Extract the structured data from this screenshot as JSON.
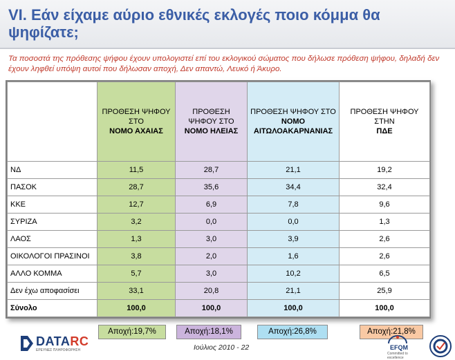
{
  "title": "VI. Εάν είχαμε αύριο εθνικές εκλογές ποιο κόμμα θα ψηφίζατε;",
  "note": "Τα ποσοστά της πρόθεσης ψήφου έχουν υπολογιστεί επί του εκλογικού σώματος που δήλωσε πρόθεση ψήφου, δηλαδή δεν έχουν ληφθεί υπόψη αυτοί που δήλωσαν αποχή, Δεν απαντώ, Λευκό ή Άκυρο.",
  "table": {
    "headers": [
      {
        "line1": "ΠΡΟΘΕΣΗ ΨΗΦΟΥ",
        "line2": "ΣΤΟ",
        "bold": "ΝΟΜΟ ΑΧΑΙΑΣ"
      },
      {
        "line1": "ΠΡΟΘΕΣΗ",
        "line2": "ΨΗΦΟΥ ΣΤΟ",
        "bold": "ΝΟΜΟ ΗΛΕΙΑΣ"
      },
      {
        "line1": "ΠΡΟΘΕΣΗ ΨΗΦΟΥ ΣΤΟ",
        "line2": "",
        "bold": "ΝΟΜΟ ΑΙΤΩΛΟΑΚΑΡΝΑΝΙΑΣ"
      },
      {
        "line1": "ΠΡΟΘΕΣΗ ΨΗΦΟΥ ΣΤΗΝ",
        "line2": "",
        "bold": "ΠΔΕ"
      }
    ],
    "rows": [
      {
        "label": "ΝΔ",
        "values": [
          "11,5",
          "28,7",
          "21,1",
          "19,2"
        ]
      },
      {
        "label": "ΠΑΣΟΚ",
        "values": [
          "28,7",
          "35,6",
          "34,4",
          "32,4"
        ]
      },
      {
        "label": "ΚΚΕ",
        "values": [
          "12,7",
          "6,9",
          "7,8",
          "9,6"
        ]
      },
      {
        "label": "ΣΥΡΙΖΑ",
        "values": [
          "3,2",
          "0,0",
          "0,0",
          "1,3"
        ]
      },
      {
        "label": "ΛΑΟΣ",
        "values": [
          "1,3",
          "3,0",
          "3,9",
          "2,6"
        ]
      },
      {
        "label": "ΟΙΚΟΛΟΓΟΙ ΠΡΑΣΙΝΟΙ",
        "values": [
          "3,8",
          "2,0",
          "1,6",
          "2,6"
        ]
      },
      {
        "label": "ΑΛΛΟ ΚΟΜΜΑ",
        "values": [
          "5,7",
          "3,0",
          "10,2",
          "6,5"
        ]
      },
      {
        "label": "Δεν έχω αποφασίσει",
        "values": [
          "33,1",
          "20,8",
          "21,1",
          "25,9"
        ]
      }
    ],
    "total": {
      "label": "Σύνολο",
      "values": [
        "100,0",
        "100,0",
        "100,0",
        "100,0"
      ]
    }
  },
  "abstention": [
    "Αποχή:19,7%",
    "Αποχή:18,1%",
    "Αποχή:26,8%",
    "Αποχή:21,8%"
  ],
  "logo": {
    "main": "DATA",
    "accent": "RC",
    "sub": "ΕΡΕΥΝΕΣ ΠΛΗΡΟΦΟΡΗΣΗ"
  },
  "footer": "Ιούλιος 2010 -  22",
  "efqm": {
    "main": "EFQM",
    "sub": "Committed to excellence"
  },
  "colors": {
    "title": "#3b5ea6",
    "note": "#c0392b",
    "achaia": "#c7dd9f",
    "ilia": "#e0d6ea",
    "aitoloakarnania": "#d4ecf6"
  }
}
